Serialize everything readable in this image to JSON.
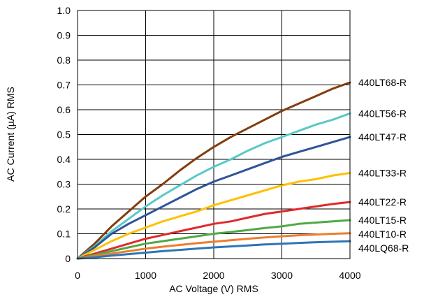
{
  "chart_data": {
    "type": "line",
    "xlabel": "AC Voltage (V) RMS",
    "ylabel": "AC Current (µA) RMS",
    "xlim": [
      0,
      4000
    ],
    "ylim": [
      0,
      1.0
    ],
    "x_ticks": [
      0,
      1000,
      2000,
      3000,
      4000
    ],
    "y_ticks": [
      "0",
      "0.1",
      "0.2",
      "0.3",
      "0.4",
      "0.5",
      "0.6",
      "0.7",
      "0.8",
      "0.9",
      "1.0"
    ],
    "grid": true,
    "legend": "series labels at right end of lines",
    "x": [
      0,
      250,
      500,
      750,
      1000,
      1250,
      1500,
      1750,
      2000,
      2250,
      2500,
      2750,
      3000,
      3250,
      3500,
      3750,
      4000
    ],
    "series": [
      {
        "name": "440LT68-R",
        "color": "#843C0C",
        "values": [
          0,
          0.06,
          0.13,
          0.19,
          0.25,
          0.3,
          0.355,
          0.405,
          0.45,
          0.49,
          0.525,
          0.56,
          0.595,
          0.625,
          0.655,
          0.685,
          0.71
        ]
      },
      {
        "name": "440LT56-R",
        "color": "#5BC8C8",
        "values": [
          0,
          0.05,
          0.11,
          0.16,
          0.21,
          0.255,
          0.295,
          0.335,
          0.37,
          0.4,
          0.435,
          0.465,
          0.49,
          0.515,
          0.54,
          0.56,
          0.585
        ]
      },
      {
        "name": "440LT47-R",
        "color": "#2F5597",
        "values": [
          0,
          0.045,
          0.1,
          0.14,
          0.175,
          0.21,
          0.245,
          0.28,
          0.31,
          0.335,
          0.36,
          0.385,
          0.41,
          0.43,
          0.45,
          0.47,
          0.49
        ]
      },
      {
        "name": "440LT33-R",
        "color": "#FFC000",
        "values": [
          0,
          0.035,
          0.07,
          0.1,
          0.125,
          0.15,
          0.17,
          0.19,
          0.215,
          0.235,
          0.255,
          0.275,
          0.295,
          0.31,
          0.32,
          0.335,
          0.345
        ]
      },
      {
        "name": "440LT22-R",
        "color": "#E02A2A",
        "values": [
          0,
          0.02,
          0.04,
          0.06,
          0.08,
          0.095,
          0.11,
          0.125,
          0.14,
          0.15,
          0.165,
          0.18,
          0.19,
          0.2,
          0.21,
          0.22,
          0.228
        ]
      },
      {
        "name": "440LT15-R",
        "color": "#4EAA44",
        "values": [
          0,
          0.015,
          0.03,
          0.045,
          0.06,
          0.07,
          0.08,
          0.09,
          0.1,
          0.107,
          0.115,
          0.123,
          0.13,
          0.14,
          0.145,
          0.15,
          0.155
        ]
      },
      {
        "name": "440LT10-R",
        "color": "#ED7D31",
        "values": [
          0,
          0.01,
          0.02,
          0.03,
          0.04,
          0.048,
          0.055,
          0.062,
          0.068,
          0.074,
          0.08,
          0.085,
          0.09,
          0.094,
          0.097,
          0.1,
          0.102
        ]
      },
      {
        "name": "440LQ68-R",
        "color": "#2E75B6",
        "values": [
          0,
          0.005,
          0.012,
          0.018,
          0.024,
          0.03,
          0.035,
          0.04,
          0.045,
          0.049,
          0.053,
          0.057,
          0.06,
          0.063,
          0.066,
          0.068,
          0.07
        ]
      }
    ]
  }
}
